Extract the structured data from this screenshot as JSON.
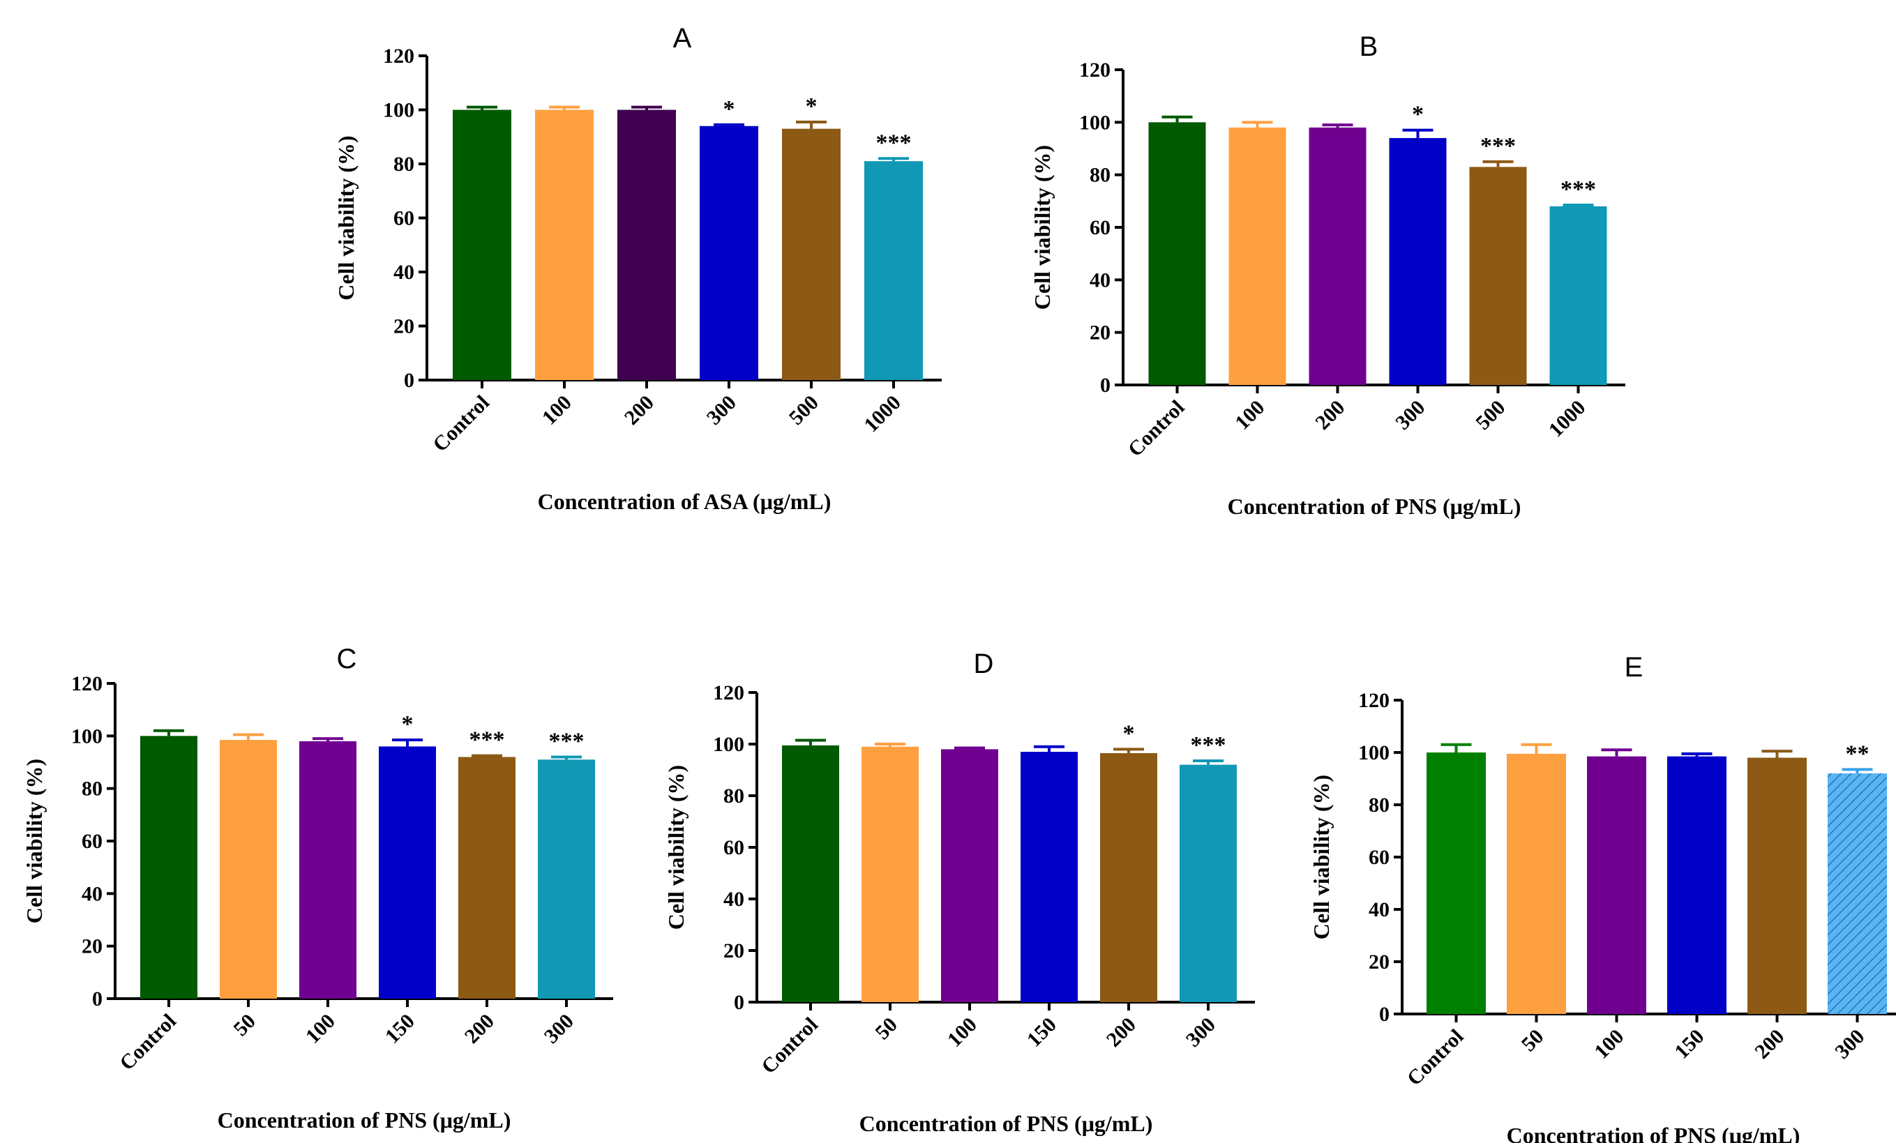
{
  "figure": {
    "chart_data": [
      {
        "panel": "A",
        "type": "bar",
        "title": "A",
        "xlabel": "Concentration of ASA (μg/mL)",
        "ylabel": "Cell viability (%)",
        "ylim": [
          0,
          120
        ],
        "yticks": [
          "0",
          "20",
          "40",
          "60",
          "80",
          "100",
          "120"
        ],
        "categories": [
          "Control",
          "100",
          "200",
          "300",
          "500",
          "1000"
        ],
        "values": [
          100,
          100,
          100,
          94,
          93,
          81
        ],
        "errors": [
          1,
          1,
          1,
          0.5,
          2.5,
          1
        ],
        "significance": [
          "",
          "",
          "",
          "*",
          "*",
          "***"
        ],
        "colors": [
          "#005A00",
          "#FFA040",
          "#400050",
          "#0000C8",
          "#8C5A14",
          "#1098B4"
        ]
      },
      {
        "panel": "B",
        "type": "bar",
        "title": "B",
        "xlabel": "Concentration of PNS (μg/mL)",
        "ylabel": "Cell viability (%)",
        "ylim": [
          0,
          120
        ],
        "yticks": [
          "0",
          "20",
          "40",
          "60",
          "80",
          "100",
          "120"
        ],
        "categories": [
          "Control",
          "100",
          "200",
          "300",
          "500",
          "1000"
        ],
        "values": [
          100,
          98,
          98,
          94,
          83,
          68
        ],
        "errors": [
          2,
          2,
          1,
          3,
          2,
          0.5
        ],
        "significance": [
          "",
          "",
          "",
          "*",
          "***",
          "***"
        ],
        "colors": [
          "#005A00",
          "#FFA040",
          "#700090",
          "#0000C8",
          "#8C5A14",
          "#1098B4"
        ]
      },
      {
        "panel": "C",
        "type": "bar",
        "title": "C",
        "xlabel": "Concentration of PNS (μg/mL)",
        "ylabel": "Cell viability (%)",
        "ylim": [
          0,
          120
        ],
        "yticks": [
          "0",
          "20",
          "40",
          "60",
          "80",
          "100",
          "120"
        ],
        "categories": [
          "Control",
          "50",
          "100",
          "150",
          "200",
          "300"
        ],
        "values": [
          100,
          98.5,
          98,
          96,
          92,
          91
        ],
        "errors": [
          2,
          2,
          1,
          2.5,
          0.5,
          1
        ],
        "significance": [
          "",
          "",
          "",
          "*",
          "***",
          "***"
        ],
        "colors": [
          "#005A00",
          "#FFA040",
          "#700090",
          "#0000C8",
          "#8C5A14",
          "#1098B4"
        ]
      },
      {
        "panel": "D",
        "type": "bar",
        "title": "D",
        "xlabel": "Concentration of PNS (μg/mL)",
        "ylabel": "Cell viability (%)",
        "ylim": [
          0,
          120
        ],
        "yticks": [
          "0",
          "20",
          "40",
          "60",
          "80",
          "100",
          "120"
        ],
        "categories": [
          "Control",
          "50",
          "100",
          "150",
          "200",
          "300"
        ],
        "values": [
          99.5,
          99,
          98,
          97,
          96.5,
          92
        ],
        "errors": [
          2,
          1,
          0.5,
          2,
          1.5,
          1.5
        ],
        "significance": [
          "",
          "",
          "",
          "",
          "*",
          "***"
        ],
        "colors": [
          "#005A00",
          "#FFA040",
          "#700090",
          "#0000C8",
          "#8C5A14",
          "#1098B4"
        ]
      },
      {
        "panel": "E",
        "type": "bar",
        "title": "E",
        "xlabel": "Concentration of PNS (μg/mL)",
        "ylabel": "Cell viability (%)",
        "ylim": [
          0,
          120
        ],
        "yticks": [
          "0",
          "20",
          "40",
          "60",
          "80",
          "100",
          "120"
        ],
        "categories": [
          "Control",
          "50",
          "100",
          "150",
          "200",
          "300"
        ],
        "values": [
          100,
          99.5,
          98.5,
          98.5,
          98,
          92
        ],
        "errors": [
          3,
          3.5,
          2.5,
          1,
          2.5,
          1.5
        ],
        "significance": [
          "",
          "",
          "",
          "",
          "",
          "**"
        ],
        "colors": [
          "#008000",
          "#FFA040",
          "#700090",
          "#0000C8",
          "#8C5A14",
          "#3AA0E8"
        ]
      }
    ]
  }
}
